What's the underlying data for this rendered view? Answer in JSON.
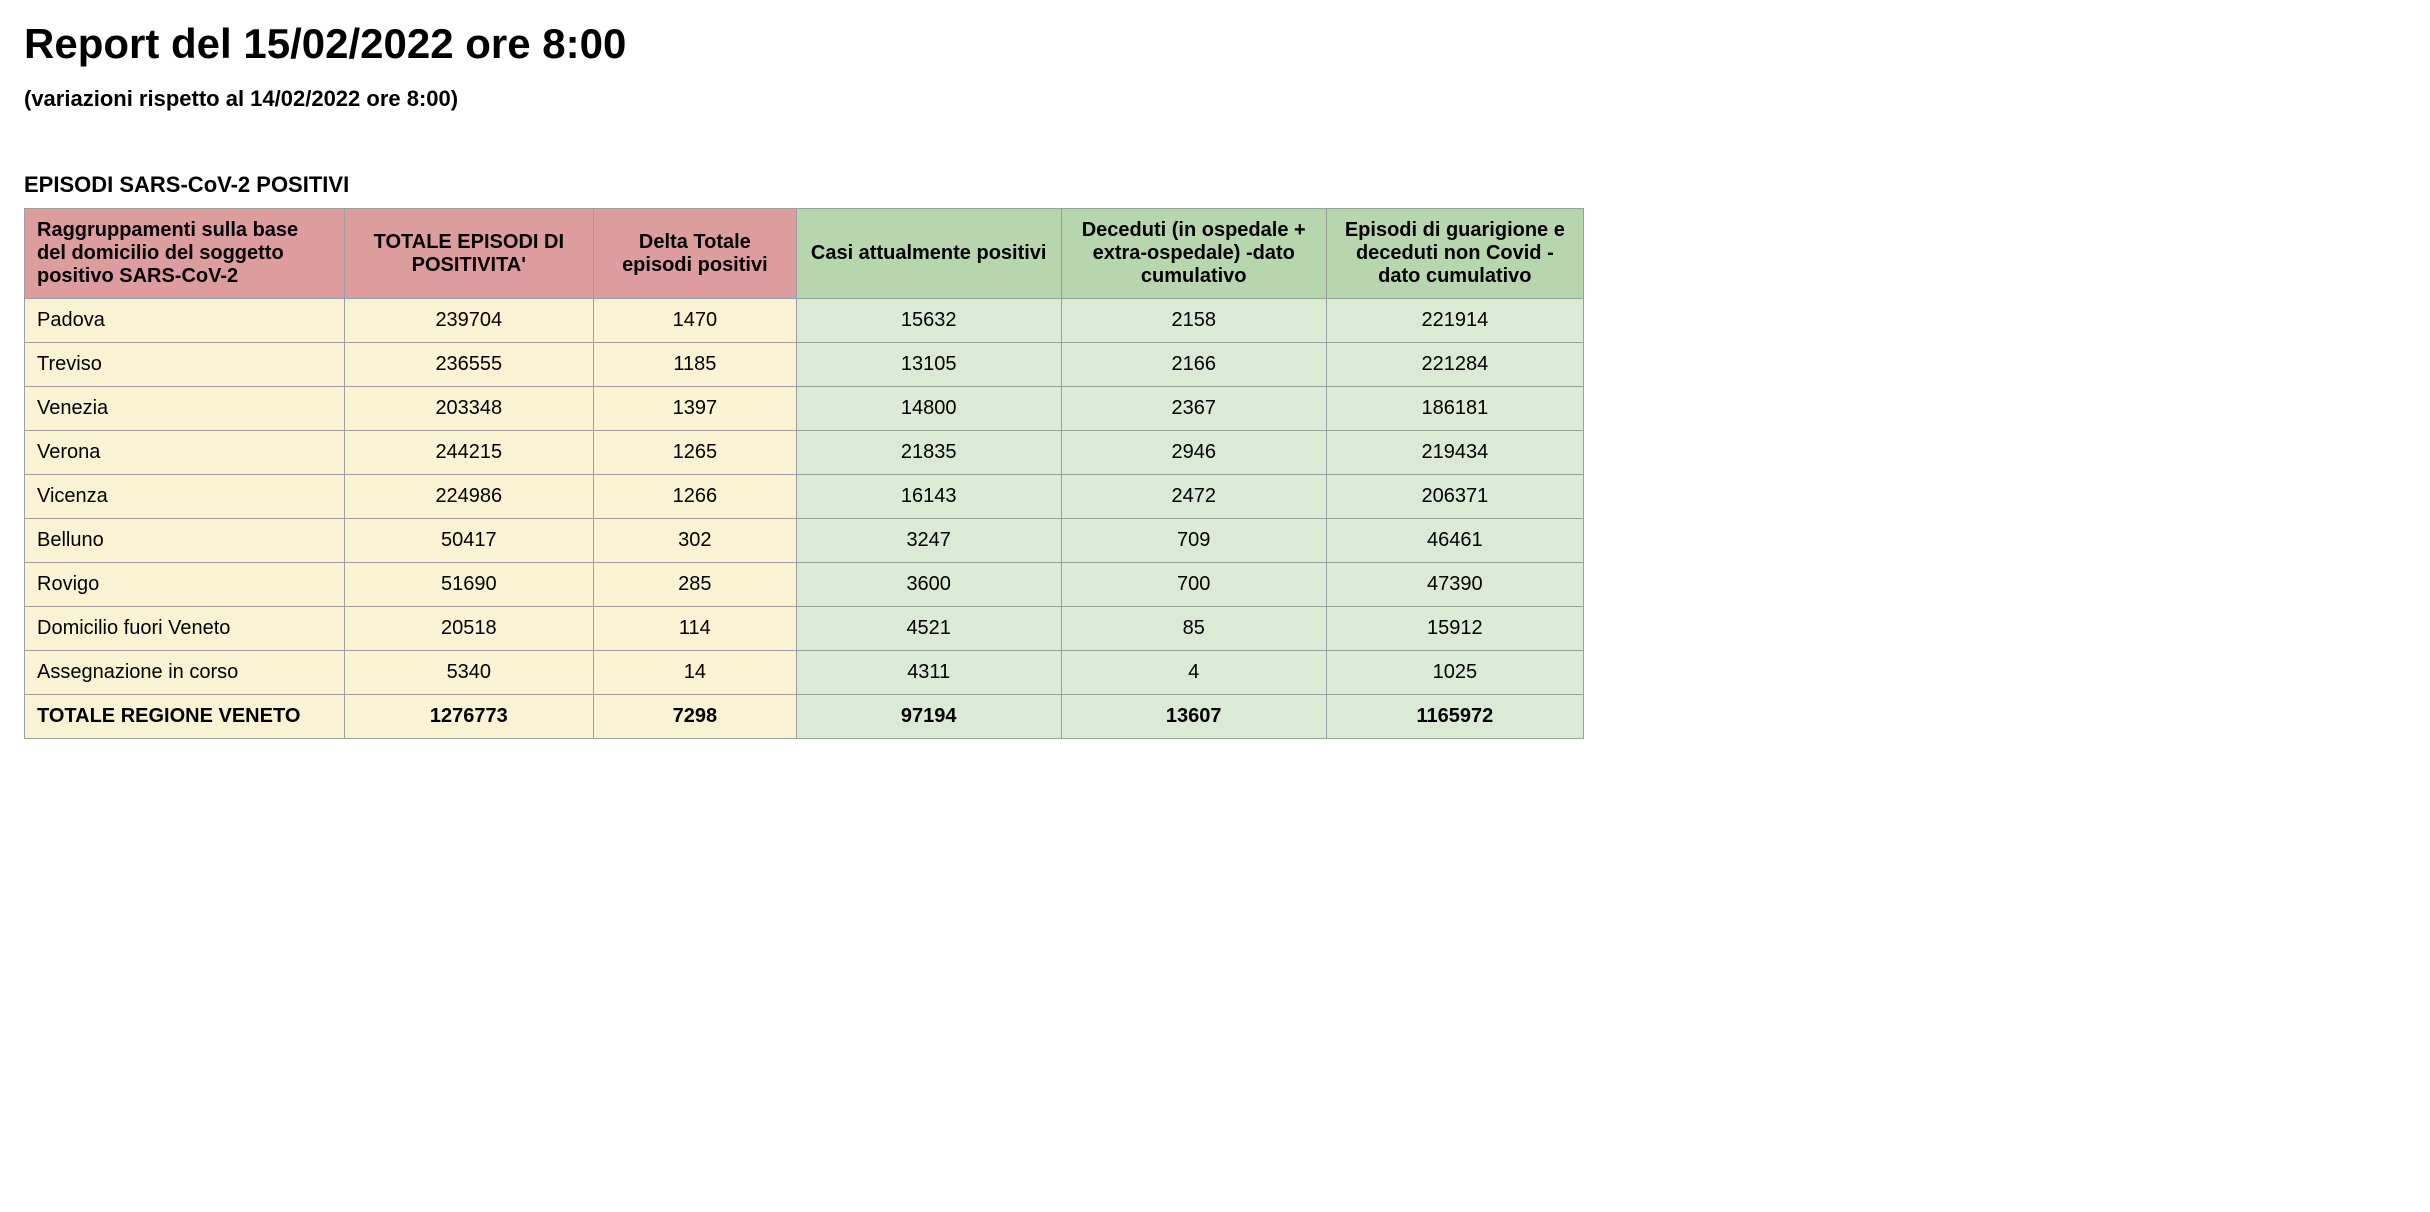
{
  "title": "Report del 15/02/2022 ore 8:00",
  "subtitle": "(variazioni rispetto al 14/02/2022 ore 8:00)",
  "section_title": "EPISODI SARS-CoV-2 POSITIVI",
  "table": {
    "headers": [
      {
        "label": "Raggruppamenti sulla base del domicilio del soggetto positivo SARS-CoV-2",
        "group": "pink",
        "align": "left"
      },
      {
        "label": "TOTALE EPISODI DI POSITIVITA'",
        "group": "pink",
        "align": "center"
      },
      {
        "label": "Delta Totale episodi positivi",
        "group": "pink",
        "align": "center"
      },
      {
        "label": "Casi attualmente positivi",
        "group": "green",
        "align": "center"
      },
      {
        "label": "Deceduti (in ospedale + extra-ospedale) -dato cumulativo",
        "group": "green",
        "align": "center"
      },
      {
        "label": "Episodi di guarigione e deceduti non Covid - dato cumulativo",
        "group": "green",
        "align": "center"
      }
    ],
    "rows": [
      {
        "label": "Padova",
        "total": "239704",
        "delta": "1470",
        "current": "15632",
        "deceased": "2158",
        "recovered": "221914"
      },
      {
        "label": "Treviso",
        "total": "236555",
        "delta": "1185",
        "current": "13105",
        "deceased": "2166",
        "recovered": "221284"
      },
      {
        "label": "Venezia",
        "total": "203348",
        "delta": "1397",
        "current": "14800",
        "deceased": "2367",
        "recovered": "186181"
      },
      {
        "label": "Verona",
        "total": "244215",
        "delta": "1265",
        "current": "21835",
        "deceased": "2946",
        "recovered": "219434"
      },
      {
        "label": "Vicenza",
        "total": "224986",
        "delta": "1266",
        "current": "16143",
        "deceased": "2472",
        "recovered": "206371"
      },
      {
        "label": "Belluno",
        "total": "50417",
        "delta": "302",
        "current": "3247",
        "deceased": "709",
        "recovered": "46461"
      },
      {
        "label": "Rovigo",
        "total": "51690",
        "delta": "285",
        "current": "3600",
        "deceased": "700",
        "recovered": "47390"
      },
      {
        "label": "Domicilio fuori Veneto",
        "total": "20518",
        "delta": "114",
        "current": "4521",
        "deceased": "85",
        "recovered": "15912"
      },
      {
        "label": "Assegnazione in corso",
        "total": "5340",
        "delta": "14",
        "current": "4311",
        "deceased": "4",
        "recovered": "1025"
      }
    ],
    "total_row": {
      "label": "TOTALE REGIONE VENETO",
      "total": "1276773",
      "delta": "7298",
      "current": "97194",
      "deceased": "13607",
      "recovered": "1165972"
    },
    "colors": {
      "header_pink": "#dd9d9f",
      "header_green": "#b7d6ae",
      "cell_yellow": "#faf3d3",
      "cell_green": "#dbead4",
      "border": "#9aa0a0",
      "background": "#ffffff",
      "text": "#000000"
    },
    "font_sizes": {
      "title": 42,
      "subtitle": 22,
      "section_title": 22,
      "table": 20
    },
    "column_widths_pct": [
      20.5,
      16,
      13,
      17,
      17,
      16.5
    ]
  }
}
